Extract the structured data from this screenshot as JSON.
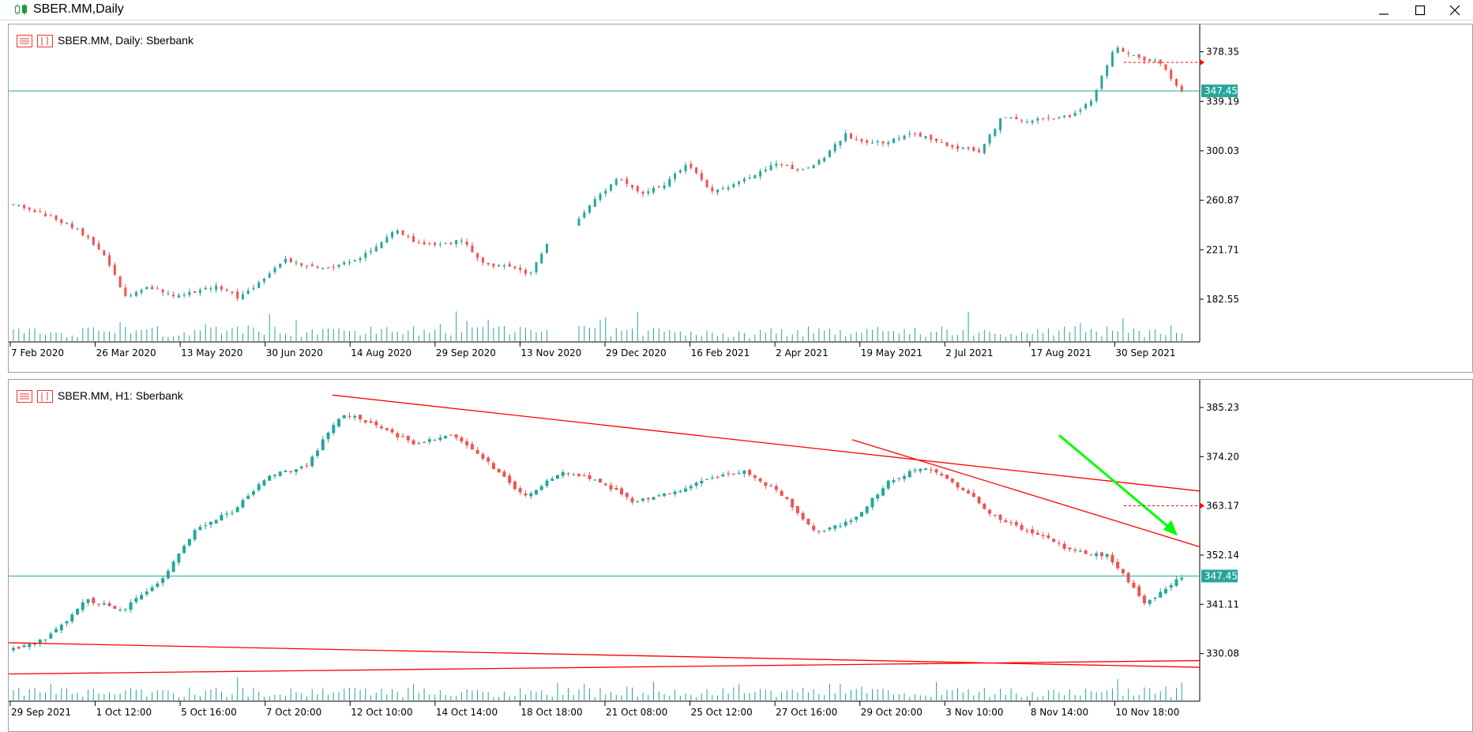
{
  "window": {
    "title": "SBER.MM,Daily"
  },
  "panels": [
    {
      "id": "daily",
      "header": "SBER.MM, Daily:  Sberbank",
      "current_price_label": "347.45",
      "y_ticks": [
        "378.35",
        "339.19",
        "300.03",
        "260.87",
        "221.71",
        "182.55"
      ],
      "x_ticks": [
        "7 Feb 2020",
        "26 Mar 2020",
        "13 May 2020",
        "30 Jun 2020",
        "14 Aug 2020",
        "29 Sep 2020",
        "13 Nov 2020",
        "29 Dec 2020",
        "16 Feb 2021",
        "2 Apr 2021",
        "19 May 2021",
        "2 Jul 2021",
        "17 Aug 2021",
        "30 Sep 2021"
      ]
    },
    {
      "id": "h1",
      "header": "SBER.MM, H1:  Sberbank",
      "current_price_label": "347.45",
      "y_ticks": [
        "385.23",
        "374.20",
        "363.17",
        "352.14",
        "341.11",
        "330.08"
      ],
      "x_ticks": [
        "29 Sep 2021",
        "1 Oct 12:00",
        "5 Oct 16:00",
        "7 Oct 20:00",
        "12 Oct 10:00",
        "14 Oct 14:00",
        "18 Oct 18:00",
        "21 Oct 08:00",
        "25 Oct 12:00",
        "27 Oct 16:00",
        "29 Oct 20:00",
        "3 Nov 10:00",
        "8 Nov 14:00",
        "10 Nov 18:00"
      ]
    }
  ],
  "colors": {
    "bull": "#26a69a",
    "bear": "#ef5350",
    "volume": "#26a69a",
    "trendline": "#ff0000",
    "arrow": "#00ff00",
    "price_line": "#26a69a",
    "price_label_bg": "#26a69a"
  },
  "chart_data": [
    {
      "type": "candlestick",
      "symbol": "SBER.MM",
      "timeframe": "Daily",
      "ylim": [
        165,
        395
      ],
      "current_price": 347.45,
      "close_path": [
        [
          "7 Feb 2020",
          258
        ],
        [
          "20 Feb 2020",
          252
        ],
        [
          "28 Feb 2020",
          245
        ],
        [
          "6 Mar 2020",
          236
        ],
        [
          "13 Mar 2020",
          218
        ],
        [
          "20 Mar 2020",
          185
        ],
        [
          "26 Mar 2020",
          192
        ],
        [
          "6 Apr 2020",
          186
        ],
        [
          "20 Apr 2020",
          188
        ],
        [
          "30 Apr 2020",
          193
        ],
        [
          "13 May 2020",
          184
        ],
        [
          "25 May 2020",
          196
        ],
        [
          "8 Jun 2020",
          214
        ],
        [
          "15 Jun 2020",
          209
        ],
        [
          "30 Jun 2020",
          206
        ],
        [
          "14 Jul 2020",
          212
        ],
        [
          "29 Jul 2020",
          222
        ],
        [
          "14 Aug 2020",
          239
        ],
        [
          "28 Aug 2020",
          226
        ],
        [
          "11 Sep 2020",
          226
        ],
        [
          "21 Sep 2020",
          229
        ],
        [
          "29 Sep 2020",
          209
        ],
        [
          "13 Oct 2020",
          208
        ],
        [
          "28 Oct 2020",
          202
        ],
        [
          "6 Nov 2020",
          235
        ],
        [
          "13 Nov 2020",
          242
        ],
        [
          "27 Nov 2020",
          264
        ],
        [
          "7 Dec 2020",
          279
        ],
        [
          "16 Dec 2020",
          266
        ],
        [
          "29 Dec 2020",
          274
        ],
        [
          "14 Jan 2021",
          290
        ],
        [
          "29 Jan 2021",
          268
        ],
        [
          "16 Feb 2021",
          272
        ],
        [
          "3 Mar 2021",
          282
        ],
        [
          "17 Mar 2021",
          290
        ],
        [
          "2 Apr 2021",
          284
        ],
        [
          "16 Apr 2021",
          293
        ],
        [
          "30 Apr 2021",
          313
        ],
        [
          "10 May 2021",
          305
        ],
        [
          "19 May 2021",
          308
        ],
        [
          "1 Jun 2021",
          314
        ],
        [
          "17 Jun 2021",
          309
        ],
        [
          "2 Jul 2021",
          302
        ],
        [
          "12 Jul 2021",
          299
        ],
        [
          "2 Aug 2021",
          327
        ],
        [
          "17 Aug 2021",
          324
        ],
        [
          "31 Aug 2021",
          326
        ],
        [
          "15 Sep 2021",
          327
        ],
        [
          "22 Sep 2021",
          340
        ],
        [
          "30 Sep 2021",
          382
        ],
        [
          "8 Oct 2021",
          374
        ],
        [
          "22 Oct 2021",
          370
        ],
        [
          "12 Nov 2021",
          347.45
        ]
      ]
    },
    {
      "type": "candlestick",
      "symbol": "SBER.MM",
      "timeframe": "H1",
      "ylim": [
        324,
        390
      ],
      "current_price": 347.45,
      "close_path": [
        [
          "29 Sep 2021",
          331
        ],
        [
          "30 Sep 2021",
          334
        ],
        [
          "1 Oct 12:00",
          342
        ],
        [
          "1 Oct 20:00",
          340
        ],
        [
          "4 Oct 12:00",
          346
        ],
        [
          "5 Oct 16:00",
          358
        ],
        [
          "6 Oct 12:00",
          362
        ],
        [
          "6 Oct 20:00",
          370
        ],
        [
          "7 Oct 20:00",
          372
        ],
        [
          "8 Oct 14:00",
          384
        ],
        [
          "11 Oct 10:00",
          381
        ],
        [
          "12 Oct 10:00",
          377
        ],
        [
          "13 Oct 10:00",
          379
        ],
        [
          "14 Oct 14:00",
          373
        ],
        [
          "15 Oct 12:00",
          365
        ],
        [
          "18 Oct 18:00",
          371
        ],
        [
          "20 Oct 12:00",
          369
        ],
        [
          "21 Oct 08:00",
          364
        ],
        [
          "22 Oct 12:00",
          366
        ],
        [
          "25 Oct 12:00",
          369
        ],
        [
          "26 Oct 12:00",
          371
        ],
        [
          "27 Oct 16:00",
          366
        ],
        [
          "28 Oct 12:00",
          357
        ],
        [
          "29 Oct 12:00",
          360
        ],
        [
          "29 Oct 20:00",
          369
        ],
        [
          "1 Nov 12:00",
          372
        ],
        [
          "3 Nov 10:00",
          367
        ],
        [
          "5 Nov 12:00",
          360
        ],
        [
          "8 Nov 14:00",
          357
        ],
        [
          "9 Nov 12:00",
          353
        ],
        [
          "10 Nov 18:00",
          352
        ],
        [
          "11 Nov 12:00",
          341
        ],
        [
          "12 Nov 12:00",
          347.45
        ]
      ]
    }
  ]
}
